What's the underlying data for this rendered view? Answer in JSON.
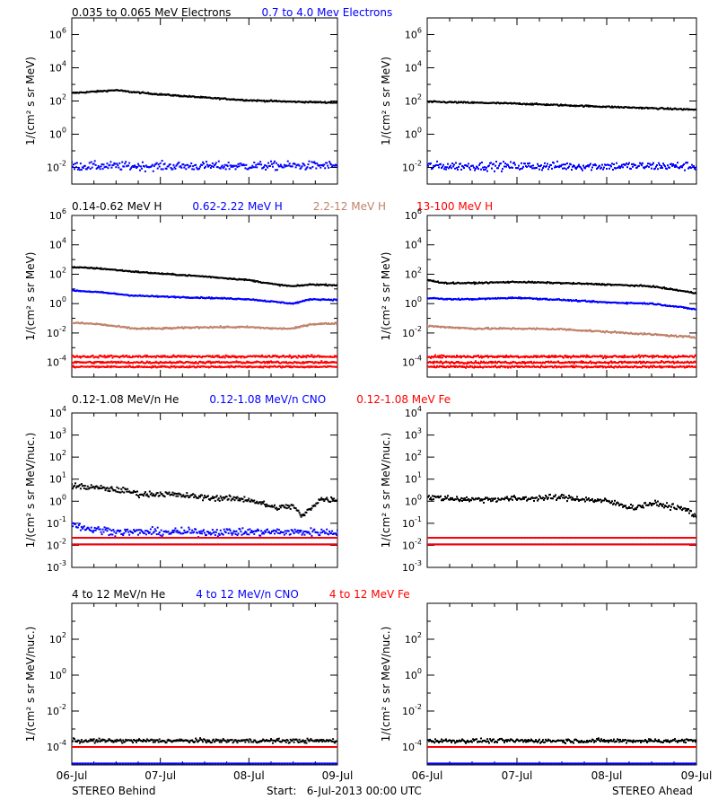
{
  "footer": {
    "left": "STEREO Behind",
    "center": "Start:   6-Jul-2013 00:00 UTC",
    "right": "STEREO Ahead"
  },
  "colors": {
    "black": "#000000",
    "blue": "#0000ff",
    "tan": "#c0826b",
    "red": "#ff0000"
  },
  "chart_data": [
    {
      "type": "scatter",
      "panel": "electrons-behind",
      "titles": [
        {
          "text": "0.035 to 0.065 MeV Electrons",
          "color": "#000000"
        },
        {
          "text": "0.7 to 4.0 Mev Electrons",
          "color": "#0000ff"
        }
      ],
      "ylabel": "1/(cm² s sr MeV)",
      "yscale": "log",
      "ylim_exp": [
        -3,
        7
      ],
      "ytick_exps": [
        -2,
        0,
        2,
        4,
        6
      ],
      "xlim_days": [
        0,
        3
      ],
      "xtick_labels": [
        "06-Jul",
        "07-Jul",
        "08-Jul",
        "09-Jul"
      ],
      "series": [
        {
          "color": "#000000",
          "x": [
            0,
            0.2,
            0.5,
            0.65,
            1.0,
            1.5,
            2.0,
            2.5,
            3.0
          ],
          "y": [
            300,
            350,
            450,
            360,
            250,
            160,
            110,
            90,
            80
          ],
          "jitter": 0.03
        },
        {
          "color": "#0000ff",
          "x": [
            0,
            1.5,
            3.0
          ],
          "y": [
            0.012,
            0.012,
            0.013
          ],
          "jitter": 0.18
        }
      ]
    },
    {
      "type": "scatter",
      "panel": "electrons-ahead",
      "ylabel": "1/(cm² s sr MeV)",
      "yscale": "log",
      "ylim_exp": [
        -3,
        7
      ],
      "ytick_exps": [
        -2,
        0,
        2,
        4,
        6
      ],
      "xlim_days": [
        0,
        3
      ],
      "xtick_labels": [
        "06-Jul",
        "07-Jul",
        "08-Jul",
        "09-Jul"
      ],
      "series": [
        {
          "color": "#000000",
          "x": [
            0,
            1.0,
            2.0,
            3.0
          ],
          "y": [
            90,
            70,
            45,
            30
          ],
          "jitter": 0.03
        },
        {
          "color": "#0000ff",
          "x": [
            0,
            1.5,
            3.0
          ],
          "y": [
            0.012,
            0.012,
            0.012
          ],
          "jitter": 0.18
        }
      ]
    },
    {
      "type": "scatter",
      "panel": "protons-behind",
      "titles": [
        {
          "text": "0.14-0.62 MeV H",
          "color": "#000000"
        },
        {
          "text": "0.62-2.22 MeV H",
          "color": "#0000ff"
        },
        {
          "text": "2.2-12 MeV H",
          "color": "#c0826b"
        },
        {
          "text": "13-100 MeV H",
          "color": "#ff0000"
        }
      ],
      "ylabel": "1/(cm² s sr MeV)",
      "yscale": "log",
      "ylim_exp": [
        -5,
        6
      ],
      "ytick_exps": [
        -4,
        -2,
        0,
        2,
        4,
        6
      ],
      "xlim_days": [
        0,
        3
      ],
      "xtick_labels": [
        "06-Jul",
        "07-Jul",
        "08-Jul",
        "09-Jul"
      ],
      "series": [
        {
          "color": "#000000",
          "x": [
            0,
            0.3,
            0.7,
            1.0,
            1.5,
            2.0,
            2.3,
            2.5,
            2.7,
            3.0
          ],
          "y": [
            300,
            250,
            150,
            110,
            70,
            40,
            20,
            15,
            20,
            18
          ],
          "jitter": 0.03
        },
        {
          "color": "#0000ff",
          "x": [
            0,
            0.3,
            0.7,
            1.0,
            1.5,
            2.0,
            2.3,
            2.5,
            2.7,
            3.0
          ],
          "y": [
            8,
            6,
            3.5,
            3,
            2.5,
            2,
            1.3,
            1.0,
            2.0,
            1.8
          ],
          "jitter": 0.03
        },
        {
          "color": "#c0826b",
          "x": [
            0,
            0.3,
            0.7,
            1.0,
            1.5,
            2.0,
            2.3,
            2.5,
            2.7,
            3.0
          ],
          "y": [
            0.05,
            0.04,
            0.02,
            0.02,
            0.025,
            0.025,
            0.02,
            0.02,
            0.04,
            0.045
          ],
          "jitter": 0.04
        },
        {
          "color": "#ff0000",
          "x": [
            0,
            3.0
          ],
          "y": [
            0.00025,
            0.00025
          ],
          "jitter": 0.06
        },
        {
          "color": "#ff0000",
          "x": [
            0,
            3.0
          ],
          "y": [
            0.0001,
            0.0001
          ],
          "jitter": 0.05
        },
        {
          "color": "#ff0000",
          "x": [
            0,
            3.0
          ],
          "y": [
            5e-05,
            5e-05
          ],
          "jitter": 0.04
        }
      ]
    },
    {
      "type": "scatter",
      "panel": "protons-ahead",
      "ylabel": "1/(cm² s sr MeV)",
      "yscale": "log",
      "ylim_exp": [
        -5,
        6
      ],
      "ytick_exps": [
        -4,
        -2,
        0,
        2,
        4,
        6
      ],
      "xlim_days": [
        0,
        3
      ],
      "xtick_labels": [
        "06-Jul",
        "07-Jul",
        "08-Jul",
        "09-Jul"
      ],
      "series": [
        {
          "color": "#000000",
          "x": [
            0,
            0.2,
            0.5,
            1.0,
            1.5,
            2.0,
            2.5,
            2.8,
            3.0
          ],
          "y": [
            40,
            25,
            25,
            30,
            25,
            20,
            15,
            8,
            5
          ],
          "jitter": 0.03
        },
        {
          "color": "#0000ff",
          "x": [
            0,
            0.2,
            0.5,
            1.0,
            1.5,
            2.0,
            2.5,
            2.8,
            3.0
          ],
          "y": [
            2.5,
            2.0,
            2.0,
            2.5,
            1.8,
            1.2,
            1.0,
            0.6,
            0.4
          ],
          "jitter": 0.03
        },
        {
          "color": "#c0826b",
          "x": [
            0,
            0.5,
            1.0,
            1.5,
            2.0,
            2.5,
            3.0
          ],
          "y": [
            0.03,
            0.02,
            0.02,
            0.018,
            0.012,
            0.008,
            0.005
          ],
          "jitter": 0.04
        },
        {
          "color": "#ff0000",
          "x": [
            0,
            3.0
          ],
          "y": [
            0.00025,
            0.00025
          ],
          "jitter": 0.06
        },
        {
          "color": "#ff0000",
          "x": [
            0,
            3.0
          ],
          "y": [
            0.0001,
            0.0001
          ],
          "jitter": 0.05
        },
        {
          "color": "#ff0000",
          "x": [
            0,
            3.0
          ],
          "y": [
            5e-05,
            5e-05
          ],
          "jitter": 0.04
        }
      ]
    },
    {
      "type": "scatter",
      "panel": "he-cno-fe-low-behind",
      "titles": [
        {
          "text": "0.12-1.08 MeV/n He",
          "color": "#000000"
        },
        {
          "text": "0.12-1.08 MeV/n CNO",
          "color": "#0000ff"
        },
        {
          "text": "0.12-1.08 MeV Fe",
          "color": "#ff0000"
        }
      ],
      "ylabel": "1/(cm² s sr MeV/nuc.)",
      "yscale": "log",
      "ylim_exp": [
        -3,
        4
      ],
      "ytick_exps": [
        -3,
        -2,
        -1,
        0,
        1,
        2,
        3,
        4
      ],
      "xlim_days": [
        0,
        3
      ],
      "xtick_labels": [
        "06-Jul",
        "07-Jul",
        "08-Jul",
        "09-Jul"
      ],
      "series": [
        {
          "color": "#000000",
          "x": [
            0,
            0.3,
            0.6,
            0.8,
            1.0,
            1.5,
            2.0,
            2.3,
            2.5,
            2.6,
            2.8,
            3.0
          ],
          "y": [
            5,
            4,
            3,
            2,
            2.2,
            1.5,
            1.2,
            0.5,
            0.6,
            0.2,
            1.2,
            1.2
          ],
          "jitter": 0.09
        },
        {
          "color": "#0000ff",
          "x": [
            0,
            0.15,
            0.3,
            0.45,
            0.55
          ],
          "y": [
            0.1,
            0.06,
            0.05,
            0.045,
            0.04
          ],
          "jitter": 0.12
        },
        {
          "color": "#0000ff",
          "x": [
            0,
            3.0
          ],
          "y": [
            0.022,
            0.022
          ],
          "jitter": 0.0
        },
        {
          "color": "#ff0000",
          "x": [
            0,
            3.0
          ],
          "y": [
            0.022,
            0.022
          ],
          "jitter": 0.0
        },
        {
          "color": "#0000ff",
          "x": [
            0,
            3.0
          ],
          "y": [
            0.011,
            0.011
          ],
          "jitter": 0.0
        },
        {
          "color": "#ff0000",
          "x": [
            0,
            3.0
          ],
          "y": [
            0.011,
            0.011
          ],
          "jitter": 0.0
        }
      ]
    },
    {
      "type": "scatter",
      "panel": "he-cno-fe-low-ahead",
      "ylabel": "1/(cm² s sr MeV/nuc.)",
      "yscale": "log",
      "ylim_exp": [
        -3,
        4
      ],
      "ytick_exps": [
        -3,
        -2,
        -1,
        0,
        1,
        2,
        3,
        4
      ],
      "xlim_days": [
        0,
        3
      ],
      "xtick_labels": [
        "06-Jul",
        "07-Jul",
        "08-Jul",
        "09-Jul"
      ],
      "series": [
        {
          "color": "#000000",
          "x": [
            0,
            0.5,
            1.0,
            1.5,
            2.0,
            2.3,
            2.5,
            2.7,
            2.9,
            3.0
          ],
          "y": [
            1.5,
            1.2,
            1.3,
            1.5,
            1.0,
            0.5,
            0.8,
            0.6,
            0.4,
            0.2
          ],
          "jitter": 0.09
        },
        {
          "color": "#0000ff",
          "x": [
            0,
            3.0
          ],
          "y": [
            0.022,
            0.022
          ],
          "jitter": 0.0
        },
        {
          "color": "#ff0000",
          "x": [
            0,
            3.0
          ],
          "y": [
            0.022,
            0.022
          ],
          "jitter": 0.0
        },
        {
          "color": "#0000ff",
          "x": [
            0,
            3.0
          ],
          "y": [
            0.011,
            0.011
          ],
          "jitter": 0.0
        },
        {
          "color": "#ff0000",
          "x": [
            0,
            3.0
          ],
          "y": [
            0.011,
            0.011
          ],
          "jitter": 0.0
        }
      ]
    },
    {
      "type": "scatter",
      "panel": "he-cno-fe-high-behind",
      "titles": [
        {
          "text": "4 to 12 MeV/n He",
          "color": "#000000"
        },
        {
          "text": "4 to 12 MeV/n CNO",
          "color": "#0000ff"
        },
        {
          "text": "4 to 12 MeV Fe",
          "color": "#ff0000"
        }
      ],
      "ylabel": "1/(cm² s sr MeV/nuc.)",
      "yscale": "log",
      "ylim_exp": [
        -5,
        4
      ],
      "ytick_exps": [
        -4,
        -2,
        0,
        2
      ],
      "xlim_days": [
        0,
        3
      ],
      "xtick_labels": [
        "06-Jul",
        "07-Jul",
        "08-Jul",
        "09-Jul"
      ],
      "series": [
        {
          "color": "#000000",
          "x": [
            0,
            3.0
          ],
          "y": [
            0.00022,
            0.00022
          ],
          "jitter": 0.08
        },
        {
          "color": "#000000",
          "x": [
            0,
            3.0
          ],
          "y": [
            0.0001,
            0.0001
          ],
          "jitter": 0.0
        },
        {
          "color": "#ff0000",
          "x": [
            0,
            3.0
          ],
          "y": [
            0.0001,
            0.0001
          ],
          "jitter": 0.0
        },
        {
          "color": "#0000ff",
          "x": [
            0,
            3.0
          ],
          "y": [
            1.2e-05,
            1.2e-05
          ],
          "jitter": 0.0
        }
      ]
    },
    {
      "type": "scatter",
      "panel": "he-cno-fe-high-ahead",
      "ylabel": "1/(cm² s sr MeV/nuc.)",
      "yscale": "log",
      "ylim_exp": [
        -5,
        4
      ],
      "ytick_exps": [
        -4,
        -2,
        0,
        2
      ],
      "xlim_days": [
        0,
        3
      ],
      "xtick_labels": [
        "06-Jul",
        "07-Jul",
        "08-Jul",
        "09-Jul"
      ],
      "series": [
        {
          "color": "#000000",
          "x": [
            0,
            3.0
          ],
          "y": [
            0.00022,
            0.00022
          ],
          "jitter": 0.08
        },
        {
          "color": "#000000",
          "x": [
            0,
            3.0
          ],
          "y": [
            0.0001,
            0.0001
          ],
          "jitter": 0.0
        },
        {
          "color": "#ff0000",
          "x": [
            0,
            3.0
          ],
          "y": [
            0.0001,
            0.0001
          ],
          "jitter": 0.0
        },
        {
          "color": "#0000ff",
          "x": [
            0,
            3.0
          ],
          "y": [
            1.2e-05,
            1.2e-05
          ],
          "jitter": 0.0
        }
      ]
    }
  ]
}
